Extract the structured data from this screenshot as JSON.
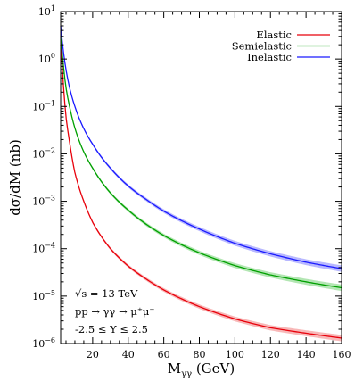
{
  "chart_data": {
    "type": "line",
    "title": "",
    "xlabel_main": "M",
    "xlabel_sub": "γγ",
    "xlabel_unit": " (GeV)",
    "ylabel": "dσ/dM (nb)",
    "xlim": [
      2,
      160
    ],
    "ylim": [
      1e-06,
      10
    ],
    "yscale": "log",
    "grid": false,
    "legend_position": "top-right",
    "x_ticks": [
      20,
      40,
      60,
      80,
      100,
      120,
      140,
      160
    ],
    "x_tick_labels": [
      "20",
      "40",
      "60",
      "80",
      "100",
      "120",
      "140",
      "160"
    ],
    "y_ticks": [
      {
        "base": "10",
        "exp": "−6"
      },
      {
        "base": "10",
        "exp": "−5"
      },
      {
        "base": "10",
        "exp": "−4"
      },
      {
        "base": "10",
        "exp": "−3"
      },
      {
        "base": "10",
        "exp": "−2"
      },
      {
        "base": "10",
        "exp": "−1"
      },
      {
        "base": "10",
        "exp": "0"
      },
      {
        "base": "10",
        "exp": "1"
      }
    ],
    "annotations": [
      "√s = 13 TeV",
      "pp → γγ → μ⁺μ⁻",
      "-2.5 ≤ Y ≤ 2.5"
    ],
    "series": [
      {
        "name": "Elastic",
        "color": "#e8000b",
        "band_color": "#f5a0a0",
        "x": [
          2,
          3,
          5,
          7,
          10,
          15,
          20,
          30,
          40,
          50,
          60,
          80,
          100,
          120,
          140,
          160
        ],
        "y": [
          2.0,
          0.6,
          0.06,
          0.018,
          0.004,
          0.001,
          0.00036,
          0.0001,
          4.3e-05,
          2.3e-05,
          1.35e-05,
          6e-06,
          3.3e-06,
          2.15e-06,
          1.65e-06,
          1.3e-06
        ]
      },
      {
        "name": "Semielastic",
        "color": "#00a000",
        "band_color": "#99dd99",
        "x": [
          2,
          3,
          5,
          7,
          10,
          15,
          20,
          30,
          40,
          50,
          60,
          80,
          100,
          120,
          140,
          160
        ],
        "y": [
          3.0,
          1.2,
          0.25,
          0.1,
          0.035,
          0.011,
          0.005,
          0.0015,
          0.00065,
          0.00033,
          0.00019,
          8.2e-05,
          4.4e-05,
          2.8e-05,
          2e-05,
          1.5e-05
        ]
      },
      {
        "name": "Inelastic",
        "color": "#1a1aff",
        "band_color": "#a0a0ff",
        "x": [
          2,
          3,
          5,
          7,
          10,
          15,
          20,
          30,
          40,
          50,
          60,
          80,
          100,
          120,
          140,
          160
        ],
        "y": [
          5.0,
          2.2,
          0.6,
          0.25,
          0.1,
          0.034,
          0.016,
          0.005,
          0.0021,
          0.0011,
          0.00062,
          0.00026,
          0.00013,
          7.8e-05,
          5.2e-05,
          3.8e-05
        ]
      }
    ]
  }
}
